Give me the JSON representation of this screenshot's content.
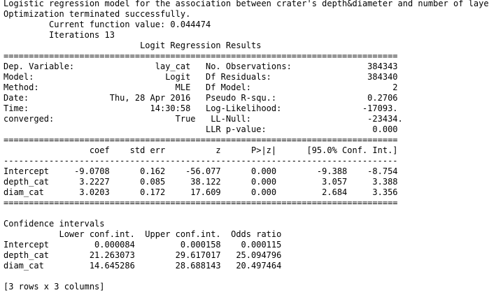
{
  "console": {
    "colors": {
      "text": "#000000",
      "background": "#ffffff"
    },
    "lines": [
      "Logistic regression model for the association between crater's depth&diameter and number of layers",
      "Optimization terminated successfully.",
      "         Current function value: 0.044474",
      "         Iterations 13",
      "                           Logit Regression Results",
      "==============================================================================",
      "Dep. Variable:                lay_cat   No. Observations:               384343",
      "Model:                          Logit   Df Residuals:                   384340",
      "Method:                           MLE   Df Model:                            2",
      "Date:                Thu, 28 Apr 2016   Pseudo R-squ.:                  0.2706",
      "Time:                        14:30:58   Log-Likelihood:                -17093.",
      "converged:                        True   LL-Null:                       -23434.",
      "                                        LLR p-value:                     0.000",
      "==============================================================================",
      "                 coef    std err          z      P>|z|      [95.0% Conf. Int.]",
      "------------------------------------------------------------------------------",
      "Intercept     -9.0708      0.162    -56.077      0.000        -9.388    -8.754",
      "depth_cat      3.2227      0.085     38.122      0.000         3.057     3.388",
      "diam_cat       3.0203      0.172     17.609      0.000         2.684     3.356",
      "==============================================================================",
      "",
      "Confidence intervals",
      "           Lower conf.int.  Upper conf.int.  Odds ratio",
      "Intercept         0.000084         0.000158    0.000115",
      "depth_cat        21.263073        29.617017   25.094796",
      "diam_cat         14.645286        28.688143   20.497464",
      "",
      "[3 rows x 3 columns]"
    ]
  }
}
